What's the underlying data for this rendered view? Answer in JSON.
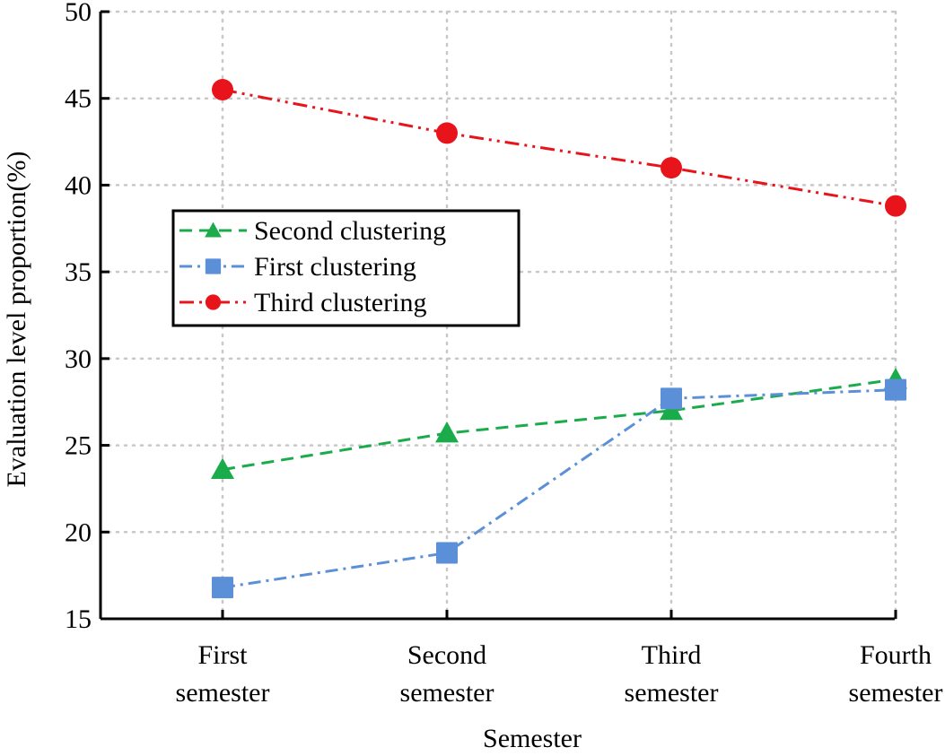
{
  "chart_data": {
    "type": "line",
    "title": "",
    "xlabel": "Semester",
    "ylabel": "Evaluation level proportion(%)",
    "categories": [
      [
        "First",
        "semester"
      ],
      [
        "Second",
        "semester"
      ],
      [
        "Third",
        "semester"
      ],
      [
        "Fourth",
        "semester"
      ]
    ],
    "ylim": [
      15,
      50
    ],
    "yticks": [
      15,
      20,
      25,
      30,
      35,
      40,
      45,
      50
    ],
    "grid": true,
    "legend_position": "center-left",
    "series": [
      {
        "name": "Second clustering",
        "values": [
          23.6,
          25.7,
          27.0,
          28.8
        ],
        "color": "#1aac4a",
        "marker": "triangle",
        "line_style": "dashed"
      },
      {
        "name": "First clustering",
        "values": [
          16.8,
          18.8,
          27.7,
          28.2
        ],
        "color": "#5b8fd8",
        "marker": "square",
        "line_style": "dash-dot"
      },
      {
        "name": "Third clustering",
        "values": [
          45.5,
          43.0,
          41.0,
          38.8
        ],
        "color": "#e8141c",
        "marker": "circle",
        "line_style": "dash-dot-dot"
      }
    ]
  }
}
